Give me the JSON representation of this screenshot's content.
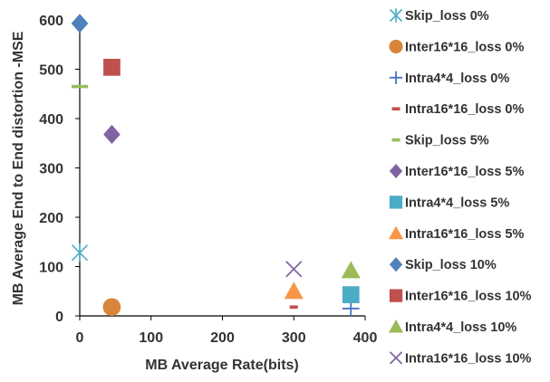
{
  "chart_data": {
    "type": "scatter",
    "title": "",
    "xlabel": "MB Average Rate(bits)",
    "ylabel": "MB Average End to End distortion -MSE",
    "xlim": [
      0,
      400
    ],
    "ylim": [
      0,
      600
    ],
    "xticks": [
      "0",
      "100",
      "200",
      "300",
      "400"
    ],
    "yticks": [
      "0",
      "100",
      "200",
      "300",
      "400",
      "500",
      "600"
    ],
    "grid": false,
    "legend_position": "right",
    "series": [
      {
        "name": "Skip_loss 0%",
        "marker": "asterisk",
        "color": "#4bacc6",
        "points": [
          [
            0,
            128
          ]
        ]
      },
      {
        "name": "Inter16*16_loss 0%",
        "marker": "circle",
        "color": "#d9843b",
        "points": [
          [
            45,
            18
          ]
        ]
      },
      {
        "name": "Intra4*4_loss 0%",
        "marker": "plus",
        "color": "#4472c4",
        "points": [
          [
            380,
            15
          ]
        ]
      },
      {
        "name": "Intra16*16_loss 0%",
        "marker": "dash",
        "color": "#c0504d",
        "points": [
          [
            300,
            18
          ]
        ]
      },
      {
        "name": "Skip_loss 5%",
        "marker": "dash",
        "color": "#9bbb59",
        "points": [
          [
            0,
            465
          ]
        ]
      },
      {
        "name": "Inter16*16_loss 5%",
        "marker": "diamond",
        "color": "#8064a2",
        "points": [
          [
            45,
            368
          ]
        ]
      },
      {
        "name": "Intra4*4_loss 5%",
        "marker": "square",
        "color": "#4bacc6",
        "points": [
          [
            380,
            43
          ]
        ]
      },
      {
        "name": "Intra16*16_loss 5%",
        "marker": "triangle",
        "color": "#f79646",
        "points": [
          [
            300,
            50
          ]
        ]
      },
      {
        "name": "Skip_loss 10%",
        "marker": "diamond",
        "color": "#4f81bd",
        "points": [
          [
            0,
            593
          ]
        ]
      },
      {
        "name": "Inter16*16_loss 10%",
        "marker": "square",
        "color": "#c0504d",
        "points": [
          [
            45,
            504
          ]
        ]
      },
      {
        "name": "Intra4*4_loss 10%",
        "marker": "triangle",
        "color": "#9bbb59",
        "points": [
          [
            380,
            92
          ]
        ]
      },
      {
        "name": "Intra16*16_loss 10%",
        "marker": "x",
        "color": "#8064a2",
        "points": [
          [
            300,
            95
          ]
        ]
      }
    ]
  }
}
